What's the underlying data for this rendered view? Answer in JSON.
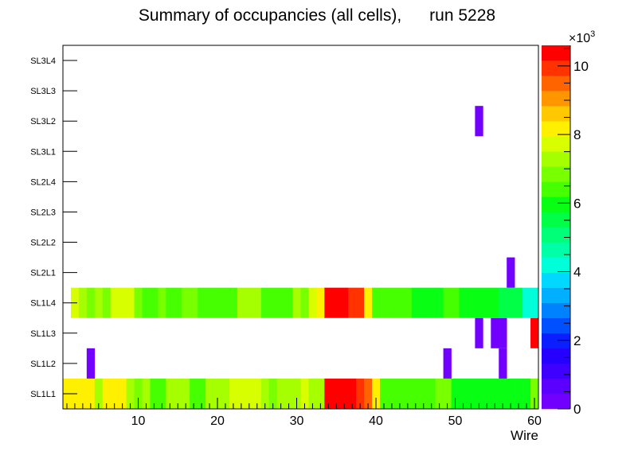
{
  "chart_data": {
    "type": "heatmap",
    "title": "Summary of occupancies (all cells),      run 5228",
    "xlabel": "Wire",
    "ylabel": "",
    "xlim": [
      0.5,
      60.5
    ],
    "x_ticks": [
      10,
      20,
      30,
      40,
      50,
      60
    ],
    "y_categories": [
      "SL1L1",
      "SL1L2",
      "SL1L3",
      "SL1L4",
      "SL2L1",
      "SL2L2",
      "SL2L3",
      "SL2L4",
      "SL3L1",
      "SL3L2",
      "SL3L3",
      "SL3L4"
    ],
    "colorbar": {
      "range": [
        0,
        10600
      ],
      "ticks": [
        0,
        2,
        4,
        6,
        8,
        10
      ],
      "multiplier": "×10",
      "exponent": "3",
      "palette": [
        "#7100ff",
        "#5b00ff",
        "#3e00ff",
        "#2600ff",
        "#0a1eff",
        "#0050ff",
        "#0082ff",
        "#00b0ff",
        "#00d8ff",
        "#00ffd8",
        "#00ffa6",
        "#00ff78",
        "#00ff46",
        "#08ff14",
        "#46ff00",
        "#78ff00",
        "#a6ff00",
        "#d8ff00",
        "#fff000",
        "#ffc800",
        "#ff9600",
        "#ff6400",
        "#ff3200",
        "#ff0000"
      ]
    },
    "series": [
      {
        "name": "SL1L1",
        "start": 1,
        "values": [
          8300,
          8300,
          8300,
          8300,
          7400,
          8300,
          8300,
          8300,
          7400,
          6800,
          7400,
          6300,
          6300,
          7400,
          7400,
          7400,
          6300,
          6300,
          7400,
          7400,
          7400,
          7700,
          7700,
          7700,
          7700,
          7400,
          6800,
          7400,
          7400,
          7400,
          7700,
          7400,
          7400,
          10700,
          10700,
          10700,
          10700,
          9800,
          9300,
          8300,
          6300,
          6300,
          6300,
          6300,
          6300,
          6300,
          6300,
          6800,
          6800,
          5800,
          5800,
          5800,
          5800,
          5800,
          5800,
          5800,
          5800,
          5800,
          5800,
          6800
        ]
      },
      {
        "name": "SL1L2",
        "start": 4,
        "values": [
          300
        ],
        "extra": [
          {
            "x": 49,
            "v": 300
          },
          {
            "x": 56,
            "v": 300
          }
        ]
      },
      {
        "name": "SL1L3",
        "start": 53,
        "values": [
          300
        ],
        "extra": [
          {
            "x": 55,
            "v": 300
          },
          {
            "x": 56,
            "v": 300
          },
          {
            "x": 60,
            "v": 10300
          }
        ]
      },
      {
        "name": "SL1L4",
        "start": 2,
        "values": [
          7700,
          7400,
          6800,
          7400,
          6800,
          7700,
          7700,
          7700,
          6800,
          6300,
          6300,
          6800,
          6300,
          6300,
          6800,
          6800,
          6300,
          6300,
          6300,
          6300,
          6300,
          7400,
          7400,
          7400,
          6300,
          6300,
          6300,
          6300,
          7400,
          6800,
          7700,
          8300,
          10700,
          10700,
          10300,
          9800,
          9800,
          8300,
          6300,
          6300,
          6300,
          6300,
          6300,
          5800,
          5800,
          5800,
          5800,
          6300,
          6300,
          5800,
          5800,
          5800,
          5800,
          5800
        ],
        "extra": [
          {
            "x": 56,
            "v": 5300
          },
          {
            "x": 57,
            "v": 5300
          },
          {
            "x": 58,
            "v": 5300
          },
          {
            "x": 59,
            "v": 4300
          },
          {
            "x": 60,
            "v": 4300
          }
        ]
      },
      {
        "name": "SL2L1",
        "start": 57,
        "values": [
          300
        ]
      },
      {
        "name": "SL2L2",
        "start": 1,
        "values": []
      },
      {
        "name": "SL2L3",
        "start": 1,
        "values": []
      },
      {
        "name": "SL2L4",
        "start": 1,
        "values": []
      },
      {
        "name": "SL3L1",
        "start": 1,
        "values": []
      },
      {
        "name": "SL3L2",
        "start": 53,
        "values": [
          300
        ]
      },
      {
        "name": "SL3L3",
        "start": 1,
        "values": []
      },
      {
        "name": "SL3L4",
        "start": 1,
        "values": []
      }
    ]
  }
}
